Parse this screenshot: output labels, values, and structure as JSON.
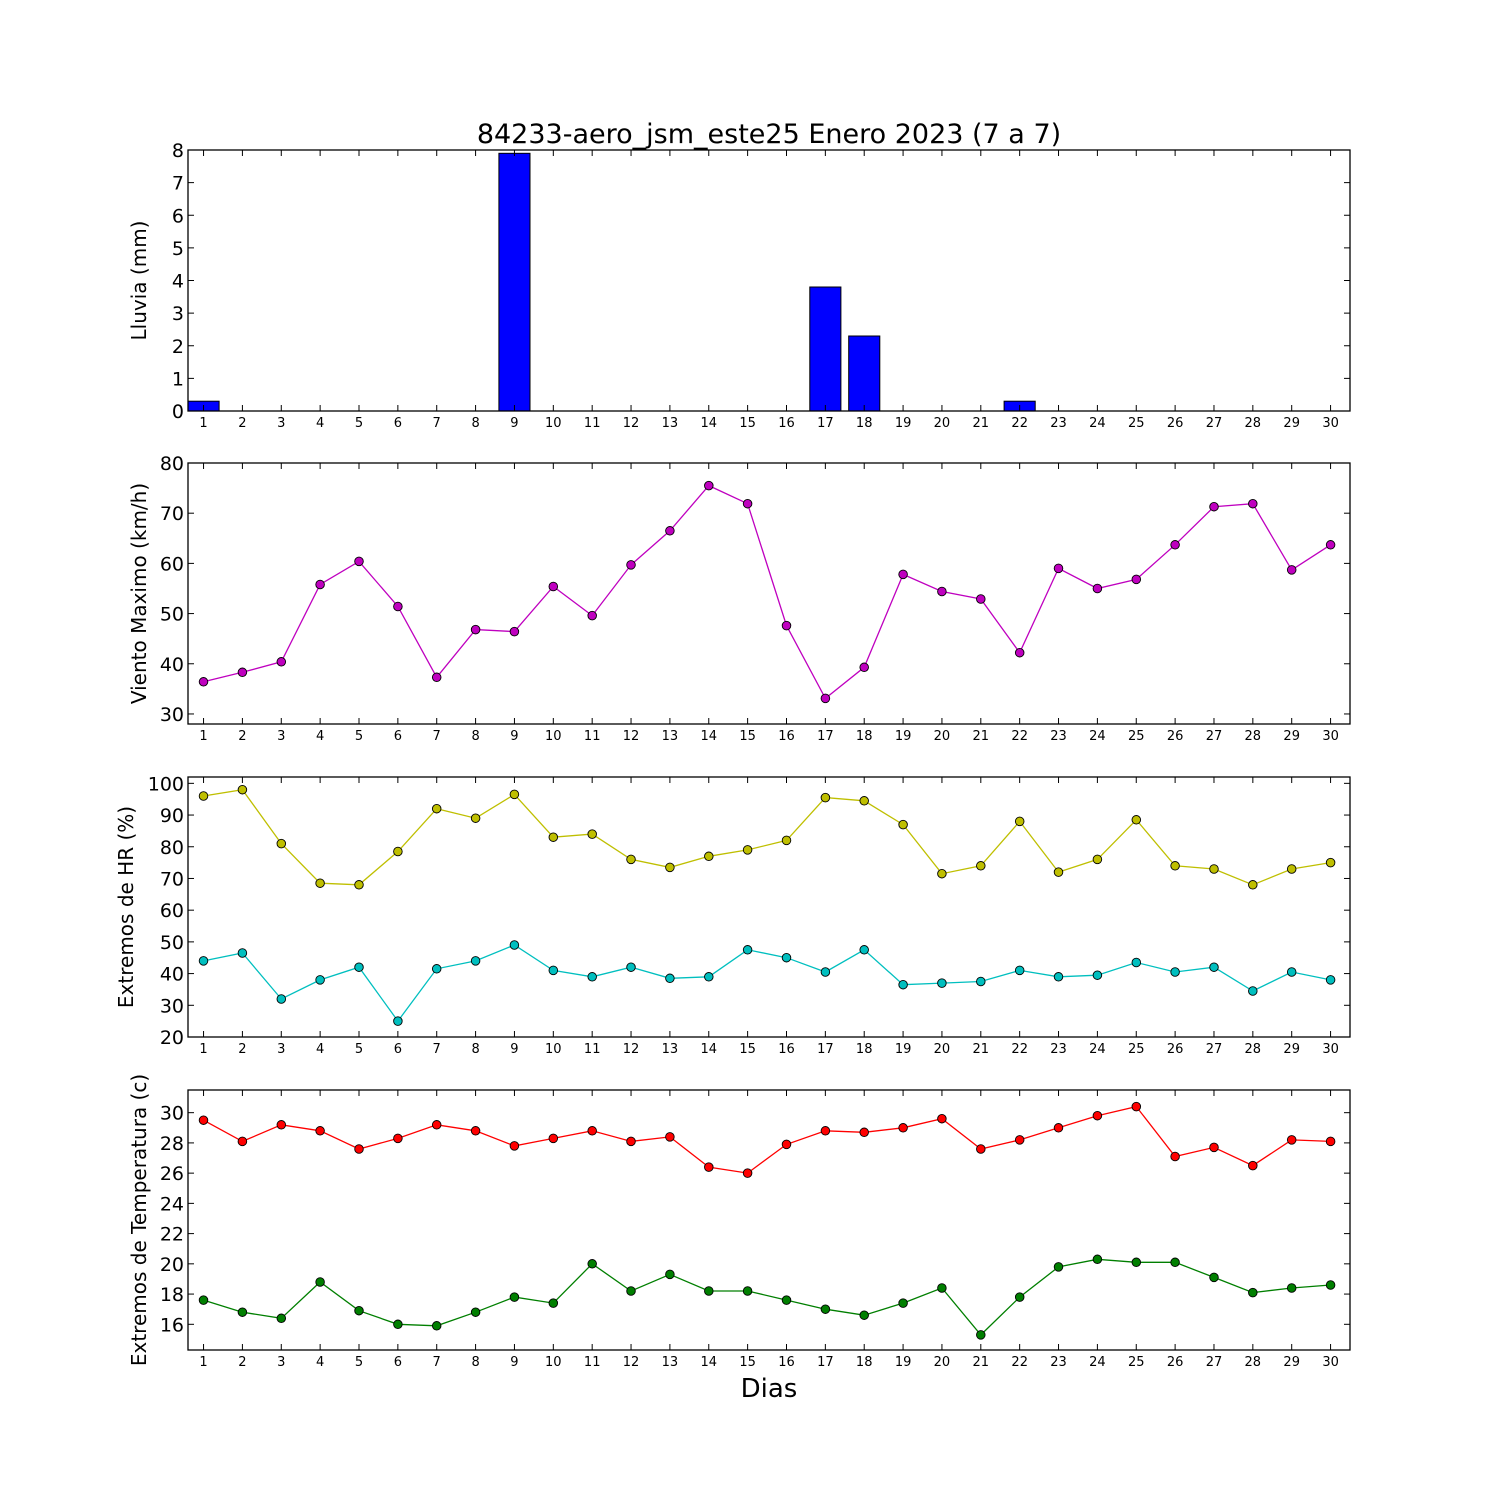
{
  "title": "84233-aero_jsm_este25 Enero 2023  (7 a 7)",
  "xlabel": "Dias",
  "chart_data": [
    {
      "type": "bar",
      "ylabel": "Lluvia (mm)",
      "ylim": [
        0,
        8
      ],
      "yticks": [
        0,
        1,
        2,
        3,
        4,
        5,
        6,
        7,
        8
      ],
      "xlim": [
        0.6,
        30.5
      ],
      "categories": [
        1,
        2,
        3,
        4,
        5,
        6,
        7,
        8,
        9,
        10,
        11,
        12,
        13,
        14,
        15,
        16,
        17,
        18,
        19,
        20,
        21,
        22,
        23,
        24,
        25,
        26,
        27,
        28,
        29,
        30
      ],
      "series": [
        {
          "color": "#0000ff",
          "values": [
            0.3,
            0,
            0,
            0,
            0,
            0,
            0,
            0,
            7.9,
            0,
            0,
            0,
            0,
            0,
            0,
            0,
            3.8,
            2.3,
            0,
            0,
            0,
            0.3,
            0,
            0,
            0,
            0,
            0,
            0,
            0,
            0
          ]
        }
      ]
    },
    {
      "type": "line",
      "ylabel": "Viento Maximo (km/h)",
      "ylim": [
        28,
        80
      ],
      "yticks": [
        30,
        40,
        50,
        60,
        70,
        80
      ],
      "xlim": [
        0.6,
        30.5
      ],
      "x": [
        1,
        2,
        3,
        4,
        5,
        6,
        7,
        8,
        9,
        10,
        11,
        12,
        13,
        14,
        15,
        16,
        17,
        18,
        19,
        20,
        21,
        22,
        23,
        24,
        25,
        26,
        27,
        28,
        29,
        30
      ],
      "series": [
        {
          "color": "#bf00bf",
          "values": [
            36.4,
            38.3,
            40.4,
            55.8,
            60.4,
            51.4,
            37.3,
            46.8,
            46.4,
            55.4,
            49.6,
            59.7,
            66.5,
            75.5,
            71.9,
            47.6,
            33.1,
            39.3,
            57.8,
            54.4,
            52.9,
            42.2,
            59.0,
            55.0,
            56.8,
            63.7,
            71.3,
            71.9,
            58.7,
            63.7
          ]
        }
      ]
    },
    {
      "type": "line",
      "ylabel": "Extremos de HR (%)",
      "ylim": [
        20,
        102
      ],
      "yticks": [
        20,
        30,
        40,
        50,
        60,
        70,
        80,
        90,
        100
      ],
      "xlim": [
        0.6,
        30.5
      ],
      "x": [
        1,
        2,
        3,
        4,
        5,
        6,
        7,
        8,
        9,
        10,
        11,
        12,
        13,
        14,
        15,
        16,
        17,
        18,
        19,
        20,
        21,
        22,
        23,
        24,
        25,
        26,
        27,
        28,
        29,
        30
      ],
      "series": [
        {
          "color": "#bfbf00",
          "values": [
            96,
            98,
            81,
            68.5,
            68,
            78.5,
            92,
            89,
            96.5,
            83,
            84,
            76,
            73.5,
            77,
            79,
            82,
            95.5,
            94.5,
            87,
            71.5,
            74,
            88,
            72,
            76,
            88.5,
            74,
            73,
            68,
            73,
            75
          ]
        },
        {
          "color": "#00bfbf",
          "values": [
            44,
            46.5,
            32,
            38,
            42,
            25,
            41.5,
            44,
            49,
            41,
            39,
            42,
            38.5,
            39,
            47.5,
            45,
            40.5,
            47.5,
            36.5,
            37,
            37.5,
            41,
            39,
            39.5,
            43.5,
            40.5,
            42,
            34.5,
            40.5,
            38
          ]
        }
      ]
    },
    {
      "type": "line",
      "ylabel": "Extremos de Temperatura (c)",
      "ylim": [
        14.3,
        31.5
      ],
      "yticks": [
        16,
        18,
        20,
        22,
        24,
        26,
        28,
        30
      ],
      "xlim": [
        0.6,
        30.5
      ],
      "x": [
        1,
        2,
        3,
        4,
        5,
        6,
        7,
        8,
        9,
        10,
        11,
        12,
        13,
        14,
        15,
        16,
        17,
        18,
        19,
        20,
        21,
        22,
        23,
        24,
        25,
        26,
        27,
        28,
        29,
        30
      ],
      "series": [
        {
          "color": "#ff0000",
          "values": [
            29.5,
            28.1,
            29.2,
            28.8,
            27.6,
            28.3,
            29.2,
            28.8,
            27.8,
            28.3,
            28.8,
            28.1,
            28.4,
            26.4,
            26,
            27.9,
            28.8,
            28.7,
            29,
            29.6,
            27.6,
            28.2,
            29,
            29.8,
            30.4,
            27.1,
            27.7,
            26.5,
            28.2,
            28.1
          ]
        },
        {
          "color": "#007f00",
          "values": [
            17.6,
            16.8,
            16.4,
            18.8,
            16.9,
            16,
            15.9,
            16.8,
            17.8,
            17.4,
            20,
            18.2,
            19.3,
            18.2,
            18.2,
            17.6,
            17,
            16.6,
            17.4,
            18.4,
            15.3,
            17.8,
            19.8,
            20.3,
            20.1,
            20.1,
            19.1,
            18.1,
            18.4,
            18.6
          ]
        }
      ]
    }
  ]
}
